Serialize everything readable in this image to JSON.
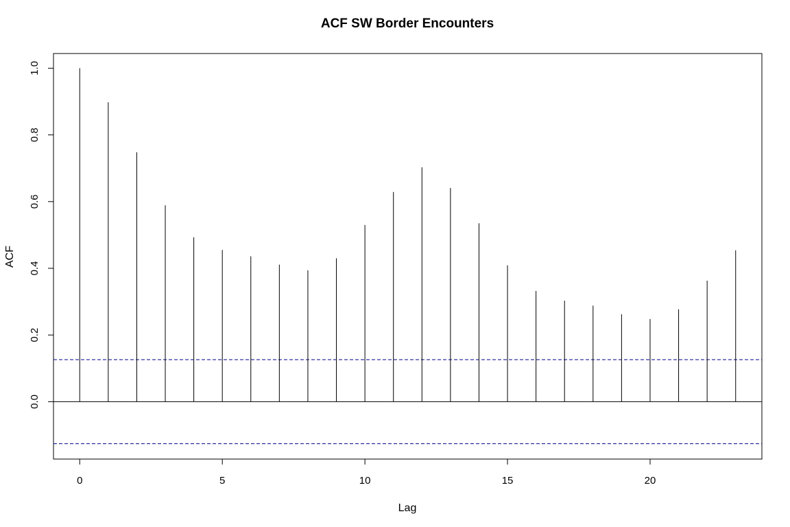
{
  "chart_data": {
    "type": "bar",
    "style": "acf-stem",
    "title": "ACF SW Border Encounters",
    "xlabel": "Lag",
    "ylabel": "ACF",
    "x": [
      0,
      1,
      2,
      3,
      4,
      5,
      6,
      7,
      8,
      9,
      10,
      11,
      12,
      13,
      14,
      15,
      16,
      17,
      18,
      19,
      20,
      21,
      22,
      23
    ],
    "values": [
      1.0,
      0.898,
      0.748,
      0.589,
      0.493,
      0.455,
      0.436,
      0.411,
      0.394,
      0.43,
      0.53,
      0.629,
      0.703,
      0.641,
      0.535,
      0.409,
      0.332,
      0.303,
      0.288,
      0.262,
      0.248,
      0.277,
      0.363,
      0.454
    ],
    "confidence_bound": 0.126,
    "xlim": [
      -0.92,
      23.92
    ],
    "ylim": [
      -0.172,
      1.044
    ],
    "x_ticks": [
      0,
      5,
      10,
      15,
      20
    ],
    "y_ticks": [
      0.0,
      0.2,
      0.4,
      0.6,
      0.8,
      1.0
    ],
    "x_tick_labels": [
      "0",
      "5",
      "10",
      "15",
      "20"
    ],
    "y_tick_labels": [
      "0.0",
      "0.2",
      "0.4",
      "0.6",
      "0.8",
      "1.0"
    ],
    "grid": false,
    "legend": "none",
    "colors": {
      "stems": "#000000",
      "zero_line": "#000000",
      "confidence_lines": "#00008b",
      "frame": "#000000"
    }
  }
}
